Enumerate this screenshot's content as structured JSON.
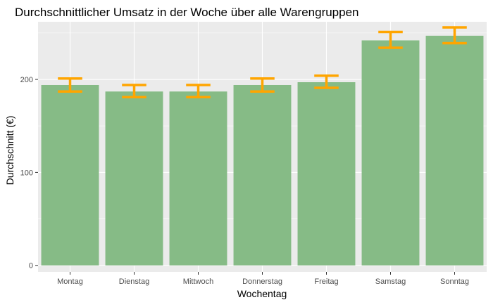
{
  "chart_data": {
    "type": "bar",
    "title": "Durchschnittlicher Umsatz in der Woche über alle Warengruppen",
    "xlabel": "Wochentag",
    "ylabel": "Durchschnitt (€)",
    "categories": [
      "Montag",
      "Dienstag",
      "Mittwoch",
      "Donnerstag",
      "Freitag",
      "Samstag",
      "Sonntag"
    ],
    "values": [
      194,
      187,
      187,
      194,
      197,
      242,
      247
    ],
    "error_low": [
      187,
      181,
      181,
      187,
      191,
      234,
      239
    ],
    "error_high": [
      201,
      194,
      194,
      201,
      204,
      251,
      256
    ],
    "ylim": [
      -7,
      262
    ],
    "yticks": [
      0,
      100,
      200
    ],
    "grid": true,
    "colors": {
      "bar": "#86bb86",
      "error": "#ffa500",
      "panel": "#ebebeb",
      "grid": "#ffffff",
      "text": "#000000",
      "tick_text": "#4d4d4d",
      "tick": "#333333"
    }
  }
}
